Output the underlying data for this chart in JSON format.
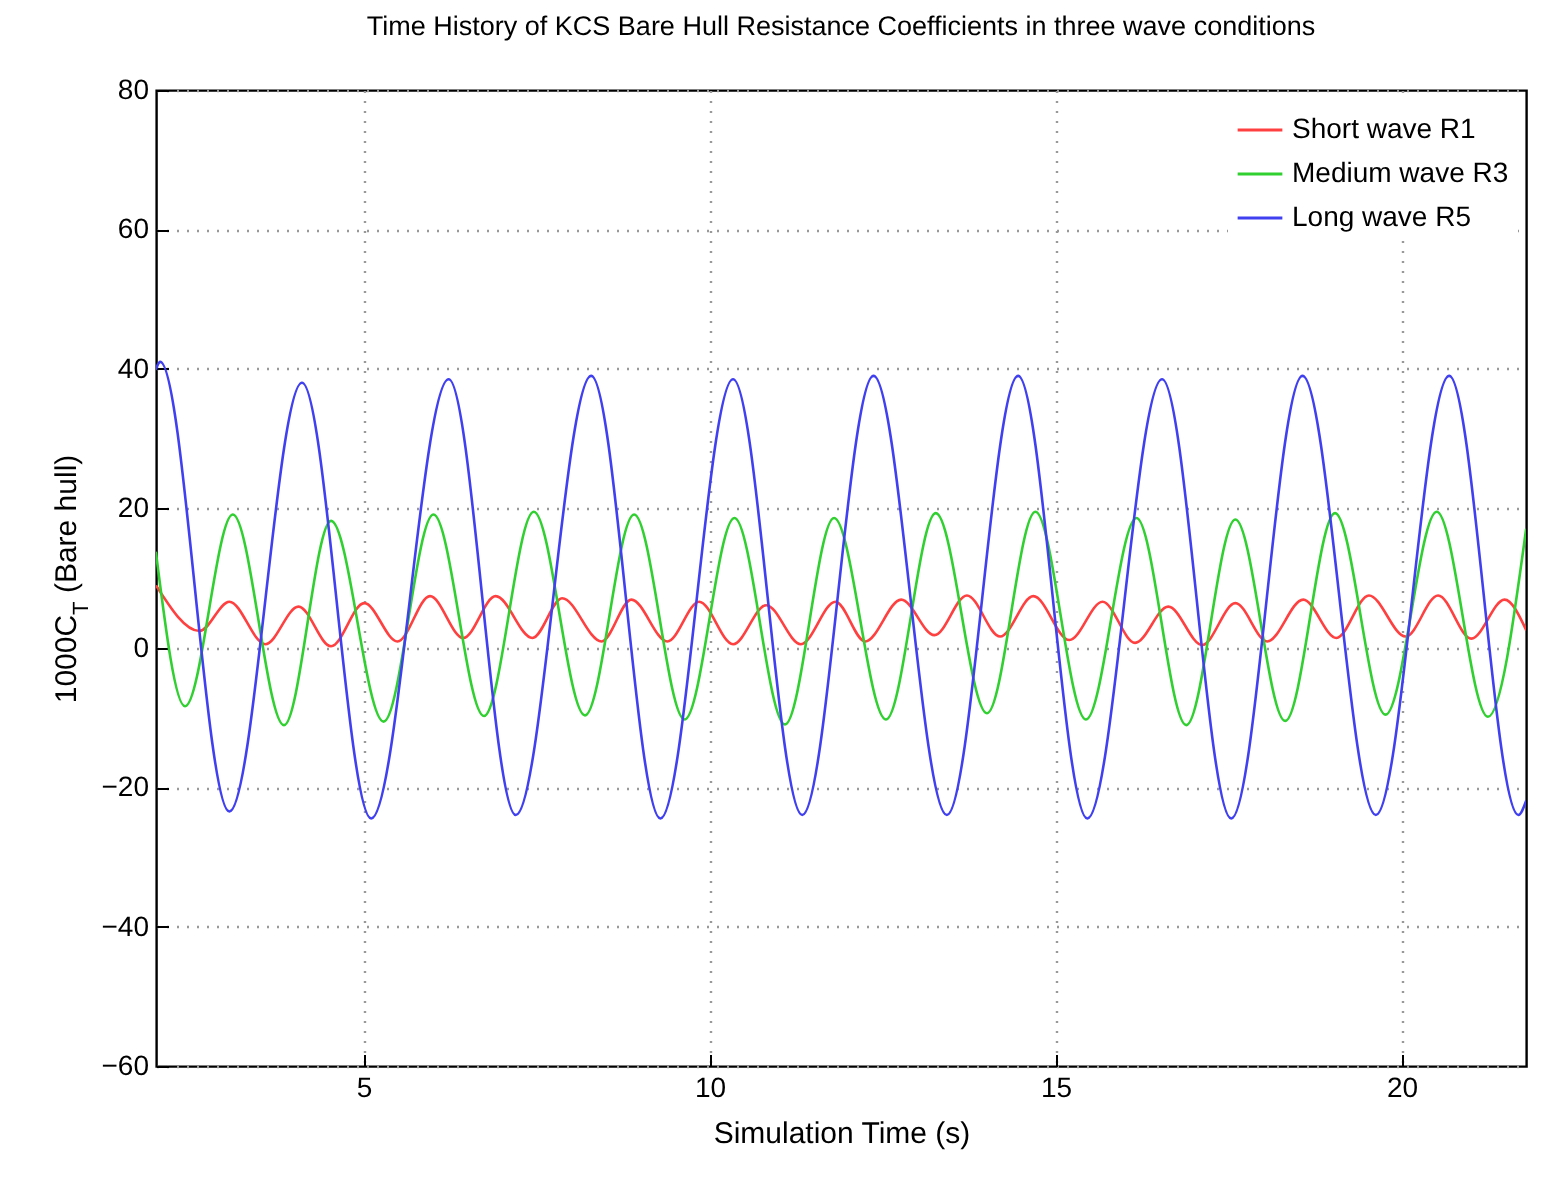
{
  "chart_data": {
    "type": "line",
    "title": "Time History of KCS Bare Hull Resistance Coefficients in three wave conditions",
    "xlabel": "Simulation Time (s)",
    "ylabel": "1000C$_{T}$ (Bare hull)",
    "xlim": [
      2,
      21.8
    ],
    "xticks": [
      5,
      10,
      15,
      20
    ],
    "ylim": [
      -60,
      80
    ],
    "yticks": [
      -60,
      -40,
      -20,
      0,
      20,
      40,
      60,
      80
    ],
    "grid": true,
    "legend": "top right",
    "line_style": "solid",
    "marker": "none",
    "series": [
      {
        "name": "Short wave R1",
        "color": "#ff4040",
        "x": [
          2.01,
          2.63,
          3.06,
          3.58,
          4.06,
          4.53,
          5.01,
          5.49,
          5.96,
          6.44,
          6.91,
          7.44,
          7.87,
          8.44,
          8.87,
          9.39,
          9.85,
          10.34,
          10.82,
          11.32,
          11.82,
          12.25,
          12.77,
          13.25,
          13.72,
          14.2,
          14.68,
          15.2,
          15.68,
          16.15,
          16.63,
          17.12,
          17.6,
          18.06,
          18.58,
          19.06,
          19.53,
          20.06,
          20.53,
          21.01,
          21.49,
          21.8
        ],
        "values": [
          8.8,
          2.4,
          6.6,
          0.5,
          5.9,
          0.2,
          6.4,
          0.9,
          7.4,
          1.4,
          7.4,
          1.4,
          7.1,
          0.9,
          6.9,
          0.9,
          6.6,
          0.5,
          6.1,
          0.5,
          6.6,
          0.9,
          6.9,
          1.8,
          7.5,
          1.6,
          7.4,
          1.1,
          6.6,
          0.7,
          5.9,
          0.4,
          6.4,
          0.9,
          6.9,
          1.4,
          7.5,
          1.6,
          7.5,
          1.3,
          6.9,
          2.6
        ]
      },
      {
        "name": "Medium wave R3",
        "color": "#30d030",
        "x": [
          2.0,
          2.42,
          3.11,
          3.85,
          4.53,
          5.29,
          6.01,
          6.74,
          7.46,
          8.2,
          8.91,
          9.64,
          10.36,
          11.09,
          11.8,
          12.55,
          13.27,
          14.01,
          14.71,
          15.44,
          16.17,
          16.89,
          17.6,
          18.32,
          19.04,
          19.77,
          20.51,
          21.25,
          21.8
        ],
        "values": [
          13.6,
          -8.4,
          19.1,
          -11.1,
          18.2,
          -10.6,
          19.1,
          -9.8,
          19.5,
          -9.7,
          19.1,
          -10.3,
          18.6,
          -11.0,
          18.6,
          -10.3,
          19.3,
          -9.4,
          19.5,
          -10.3,
          18.6,
          -11.1,
          18.4,
          -10.5,
          19.3,
          -9.6,
          19.5,
          -9.9,
          16.9
        ]
      },
      {
        "name": "Long wave R5",
        "color": "#4040f0",
        "x": [
          2.0,
          2.06,
          3.06,
          4.11,
          5.11,
          6.23,
          7.2,
          8.29,
          9.29,
          10.34,
          11.34,
          12.37,
          13.43,
          14.46,
          15.46,
          16.54,
          17.54,
          18.57,
          19.63,
          20.69,
          21.69,
          21.8
        ],
        "values": [
          40,
          41,
          -23.5,
          38,
          -24.5,
          38.5,
          -24,
          39,
          -24.5,
          38.5,
          -24,
          39,
          -24,
          39,
          -24.5,
          38.5,
          -24.5,
          39,
          -24,
          39,
          -24,
          -22
        ]
      }
    ]
  }
}
